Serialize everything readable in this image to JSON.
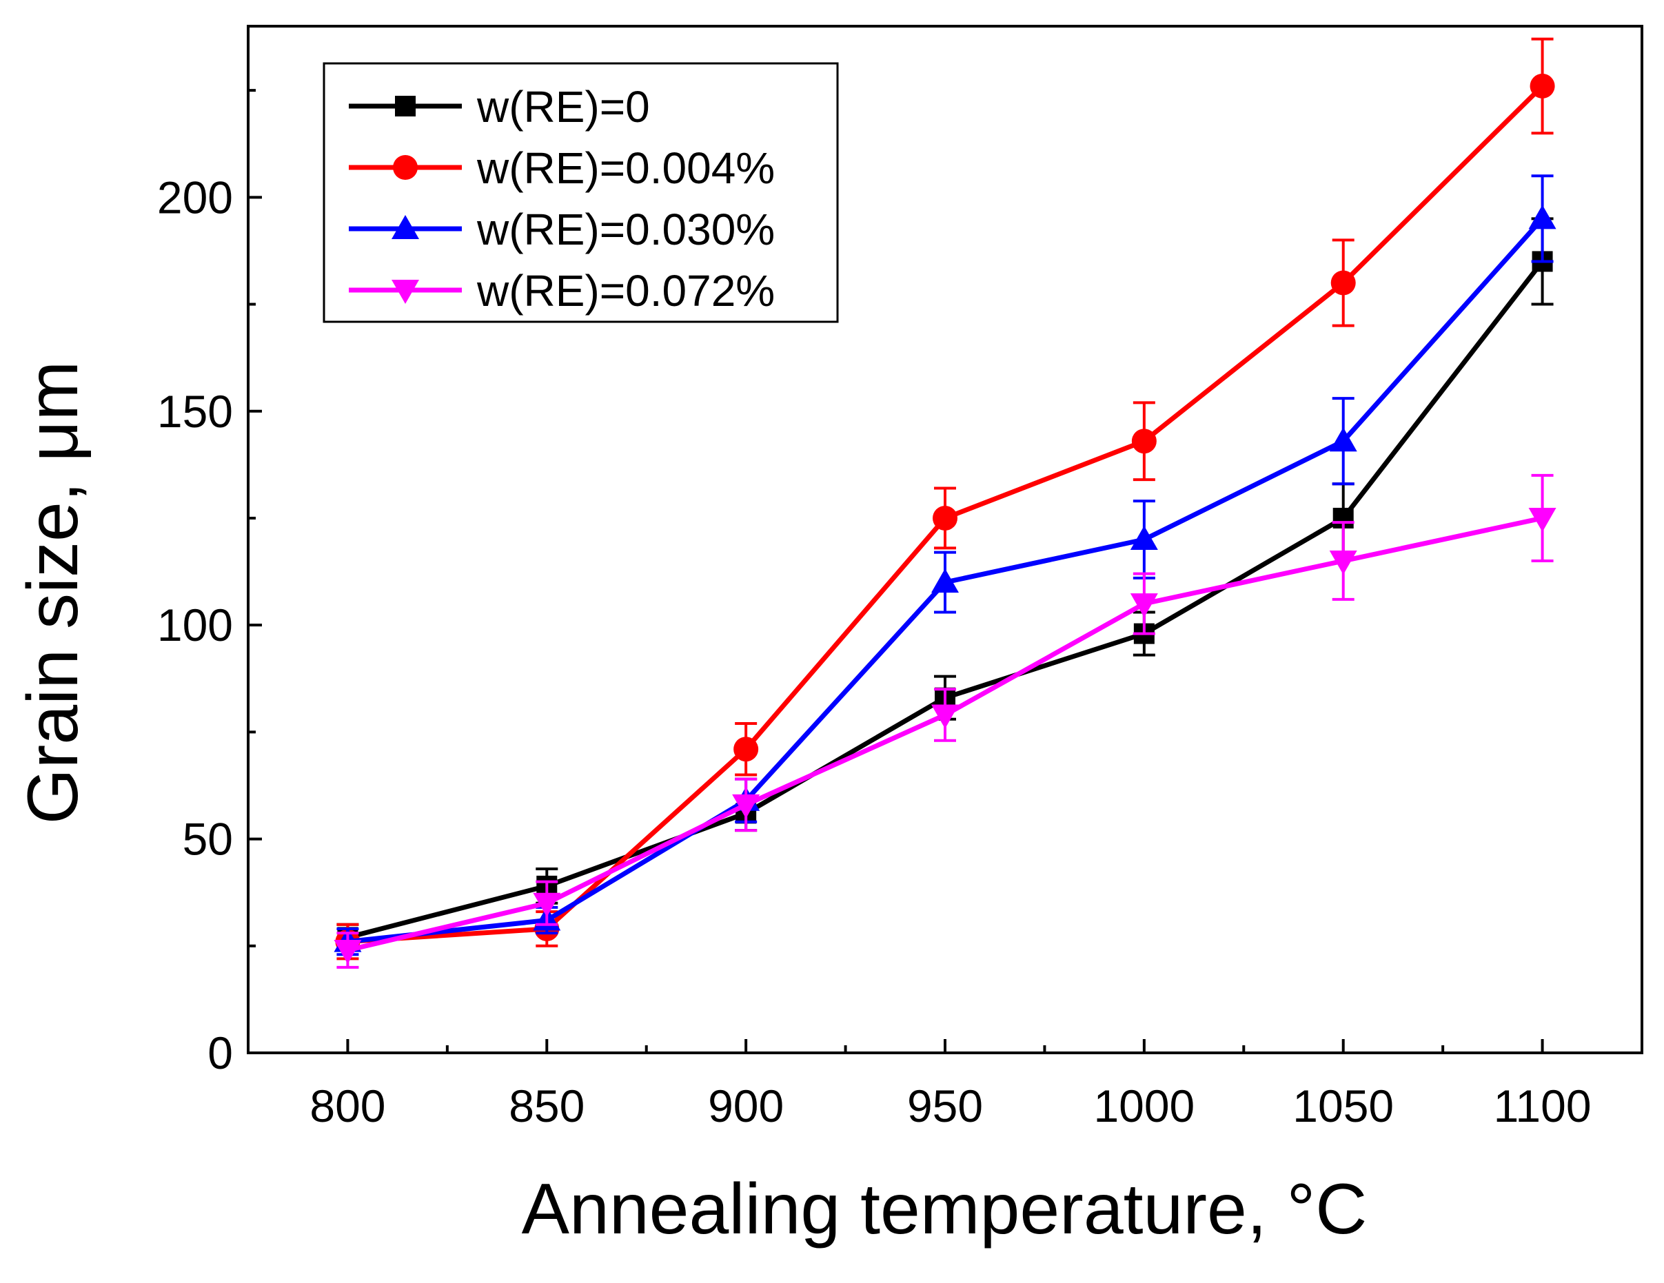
{
  "chart_data": {
    "type": "line",
    "title": "",
    "xlabel": "Annealing temperature, °C",
    "ylabel": "Grain size, μm",
    "x": [
      800,
      850,
      900,
      950,
      1000,
      1050,
      1100
    ],
    "xlim": [
      775,
      1125
    ],
    "ylim": [
      0,
      240
    ],
    "x_ticks": [
      800,
      850,
      900,
      950,
      1000,
      1050,
      1100
    ],
    "y_ticks": [
      0,
      50,
      100,
      150,
      200
    ],
    "grid": false,
    "legend_position": "top-left",
    "series": [
      {
        "name": "w(RE)=0",
        "color": "#000000",
        "marker": "square",
        "values": [
          27,
          39,
          56,
          83,
          98,
          125,
          185
        ],
        "errors": [
          3,
          4,
          4,
          5,
          5,
          8,
          10
        ]
      },
      {
        "name": "w(RE)=0.004%",
        "color": "#ff0000",
        "marker": "circle",
        "values": [
          26,
          29,
          71,
          125,
          143,
          180,
          226
        ],
        "errors": [
          4,
          4,
          6,
          7,
          9,
          10,
          11
        ]
      },
      {
        "name": "w(RE)=0.030%",
        "color": "#0000ff",
        "marker": "triangle-up",
        "values": [
          26,
          31,
          59,
          110,
          120,
          143,
          195
        ],
        "errors": [
          3,
          3,
          5,
          7,
          9,
          10,
          10
        ]
      },
      {
        "name": "w(RE)=0.072%",
        "color": "#ff00ff",
        "marker": "triangle-down",
        "values": [
          24,
          35,
          58,
          79,
          105,
          115,
          125
        ],
        "errors": [
          4,
          5,
          6,
          6,
          7,
          9,
          10
        ]
      }
    ]
  }
}
